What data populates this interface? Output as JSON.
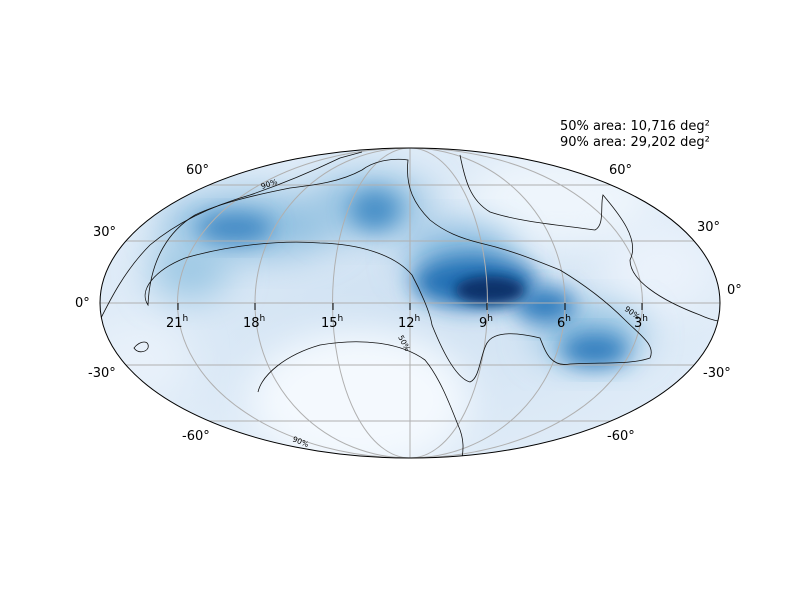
{
  "annotation": {
    "area_50": "50% area: 10,716 deg²",
    "area_90": "90% area: 29,202 deg²"
  },
  "ra_ticks": [
    {
      "hour": "21",
      "sup": "h"
    },
    {
      "hour": "18",
      "sup": "h"
    },
    {
      "hour": "15",
      "sup": "h"
    },
    {
      "hour": "12",
      "sup": "h"
    },
    {
      "hour": "9",
      "sup": "h"
    },
    {
      "hour": "6",
      "sup": "h"
    },
    {
      "hour": "3",
      "sup": "h"
    }
  ],
  "dec_ticks": {
    "left": [
      "60°",
      "30°",
      "0°",
      "-30°",
      "-60°"
    ],
    "right": [
      "60°",
      "30°",
      "0°",
      "-30°",
      "-60°"
    ]
  },
  "contour_labels": [
    "90%",
    "50%",
    "90%",
    "90%"
  ],
  "colors": {
    "colormap_low": "#f7fbff",
    "colormap_high": "#08306b",
    "grid": "#b0b0b0",
    "contour": "#000000"
  }
}
